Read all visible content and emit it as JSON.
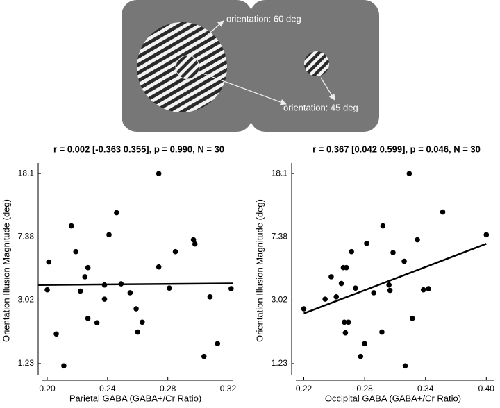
{
  "stimulus": {
    "labels": [
      "orientation: 60 deg",
      "orientation: 45 deg"
    ]
  },
  "chart_data": [
    {
      "type": "scatter",
      "title": "r = 0.002 [-0.363 0.355], p = 0.990, N = 30",
      "x_label": "Parietal GABA (GABA+/Cr Ratio)",
      "y_label": "Orientation Illusion Magnitude (deg)",
      "ylog": true,
      "color": "#000000",
      "xlim": [
        0.194,
        0.323
      ],
      "ylim": [
        1.0,
        21.0
      ],
      "xticks": [
        {
          "value": 0.2,
          "label": "0.20"
        },
        0.24,
        0.28,
        0.32
      ],
      "yticks": [
        1.23,
        3.02,
        7.38,
        18.1
      ],
      "x": [
        0.2,
        0.201,
        0.206,
        0.211,
        0.216,
        0.219,
        0.222,
        0.225,
        0.227,
        0.227,
        0.233,
        0.238,
        0.238,
        0.241,
        0.246,
        0.249,
        0.255,
        0.259,
        0.26,
        0.263,
        0.274,
        0.274,
        0.281,
        0.285,
        0.297,
        0.298,
        0.308,
        0.304,
        0.313,
        0.322
      ],
      "values": [
        3.49,
        5.18,
        1.87,
        1.19,
        8.63,
        5.99,
        3.43,
        4.2,
        4.78,
        2.33,
        2.19,
        3.74,
        3.06,
        7.61,
        10.4,
        3.8,
        3.35,
        2.67,
        1.92,
        2.21,
        18.1,
        4.83,
        3.58,
        5.99,
        7.09,
        6.68,
        3.16,
        1.36,
        1.63,
        3.55
      ],
      "fit": {
        "x": [
          0.194,
          0.323
        ],
        "values": [
          3.74,
          3.82
        ]
      }
    },
    {
      "type": "scatter",
      "title": "r = 0.367 [0.042 0.599], p = 0.046, N = 30",
      "x_label": "Occipital GABA (GABA+/Cr Ratio)",
      "y_label": "Orientation Illusion Magnitude (deg)",
      "ylog": true,
      "color": "#000000",
      "xlim": [
        0.208,
        0.408
      ],
      "ylim": [
        1.0,
        21.0
      ],
      "xticks": [
        0.22,
        0.28,
        0.34,
        {
          "value": 0.4,
          "label": "0.40"
        }
      ],
      "yticks": [
        1.23,
        3.02,
        7.38,
        18.1
      ],
      "x": [
        0.22,
        0.241,
        0.247,
        0.252,
        0.257,
        0.259,
        0.26,
        0.261,
        0.262,
        0.264,
        0.267,
        0.271,
        0.276,
        0.28,
        0.282,
        0.289,
        0.297,
        0.298,
        0.304,
        0.305,
        0.308,
        0.319,
        0.32,
        0.324,
        0.327,
        0.332,
        0.338,
        0.343,
        0.357,
        0.4
      ],
      "values": [
        2.67,
        3.06,
        4.2,
        3.16,
        3.82,
        4.78,
        2.21,
        1.9,
        4.78,
        2.21,
        5.99,
        3.58,
        1.36,
        1.63,
        6.73,
        3.35,
        1.92,
        8.63,
        3.74,
        3.46,
        5.91,
        5.23,
        1.19,
        18.1,
        2.33,
        7.09,
        3.49,
        3.55,
        10.5,
        7.61
      ],
      "fit": {
        "x": [
          0.22,
          0.4
        ],
        "values": [
          2.5,
          6.7
        ]
      }
    }
  ]
}
